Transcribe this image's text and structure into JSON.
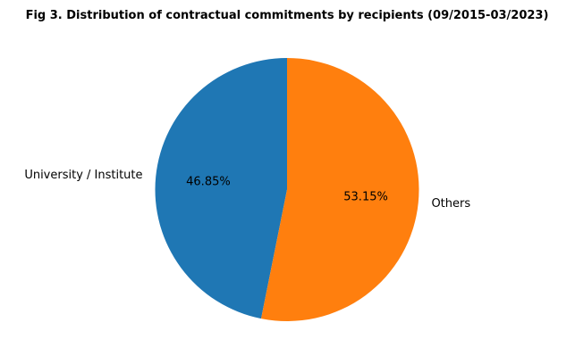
{
  "chart_data": {
    "type": "pie",
    "title": "Fig 3. Distribution of contractual commitments by recipients (09/2015-03/2023)",
    "slices": [
      {
        "label": "University / Institute",
        "value": 46.85,
        "pct_text": "46.85%",
        "color": "#1f77b4"
      },
      {
        "label": "Others",
        "value": 53.15,
        "pct_text": "53.15%",
        "color": "#ff7f0e"
      }
    ],
    "start_angle_deg": 90,
    "direction": "counterclockwise",
    "legend": "none"
  }
}
